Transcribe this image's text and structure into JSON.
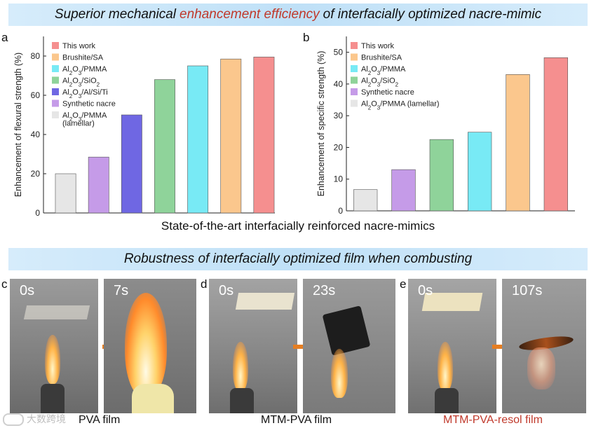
{
  "banner_top": {
    "pre": "Superior mechanical ",
    "highlight": "enhancement efficiency",
    "post": " of interfacially optimized nacre-mimic"
  },
  "banner_bottom": {
    "text": "Robustness of interfacially optimized film when combusting"
  },
  "shared_xlabel": "State-of-the-art interfacially reinforced nacre-mimics",
  "chart_data": [
    {
      "panel": "a",
      "type": "bar",
      "ylabel": "Enhancement of flexural strength (%)",
      "ylim": [
        0,
        90
      ],
      "yticks": [
        0,
        20,
        40,
        60,
        80
      ],
      "grid": false,
      "legend_position": "top-left",
      "categories": [
        "Al2O3/PMMA (lamellar)",
        "Synthetic nacre",
        "Al2O3/Al/Si/Ti",
        "Al2O3/SiO2",
        "Al2O3/PMMA",
        "Brushite/SA",
        "This work"
      ],
      "values": [
        20,
        28.5,
        50,
        68,
        75,
        78.5,
        79.5
      ],
      "colors": [
        "#e6e6e6",
        "#c59be8",
        "#6f67e3",
        "#8fd39a",
        "#78eaf5",
        "#fbc78d",
        "#f58f8f"
      ],
      "legend": [
        {
          "label": "This work",
          "color": "#f58f8f"
        },
        {
          "label": "Brushite/SA",
          "color": "#fbc78d"
        },
        {
          "label": "Al2O3/PMMA",
          "color": "#78eaf5"
        },
        {
          "label": "Al2O3/SiO2",
          "color": "#8fd39a"
        },
        {
          "label": "Al2O3/Al/Si/Ti",
          "color": "#6f67e3"
        },
        {
          "label": "Synthetic nacre",
          "color": "#c59be8"
        },
        {
          "label": "Al2O3/PMMA",
          "label2": "(lamellar)",
          "color": "#e6e6e6"
        }
      ]
    },
    {
      "panel": "b",
      "type": "bar",
      "ylabel": "Enhancement of specific strength (%)",
      "ylim": [
        0,
        55
      ],
      "yticks": [
        0,
        10,
        20,
        30,
        40,
        50
      ],
      "grid": false,
      "legend_position": "top-left",
      "categories": [
        "Al2O3/PMMA (lamellar)",
        "Synthetic nacre",
        "Al2O3/SiO2",
        "Al2O3/PMMA",
        "Brushite/SA",
        "This work"
      ],
      "values": [
        6.7,
        13,
        22.5,
        24.8,
        43,
        48.3
      ],
      "colors": [
        "#e6e6e6",
        "#c59be8",
        "#8fd39a",
        "#78eaf5",
        "#fbc78d",
        "#f58f8f"
      ],
      "legend": [
        {
          "label": "This work",
          "color": "#f58f8f"
        },
        {
          "label": "Brushite/SA",
          "color": "#fbc78d"
        },
        {
          "label": "Al2O3/PMMA",
          "color": "#78eaf5"
        },
        {
          "label": "Al2O3/SiO2",
          "color": "#8fd39a"
        },
        {
          "label": "Synthetic nacre",
          "color": "#c59be8"
        },
        {
          "label": "Al2O3/PMMA (lamellar)",
          "color": "#e6e6e6"
        }
      ]
    }
  ],
  "photos": {
    "c": {
      "letter": "c",
      "t0": "0s",
      "t1": "7s",
      "caption": "PVA film"
    },
    "d": {
      "letter": "d",
      "t0": "0s",
      "t1": "23s",
      "caption": "MTM-PVA film"
    },
    "e": {
      "letter": "e",
      "t0": "0s",
      "t1": "107s",
      "caption": "MTM-PVA-resol film"
    }
  },
  "colors": {
    "banner": "#bfe0f7",
    "highlight": "#c0392b",
    "caption_red": "#c0392b",
    "arrow": "#e67e22"
  },
  "icons": {
    "arrow": "right-arrow-icon",
    "watermark": "watermark-logo"
  },
  "watermark": "大数跨境"
}
